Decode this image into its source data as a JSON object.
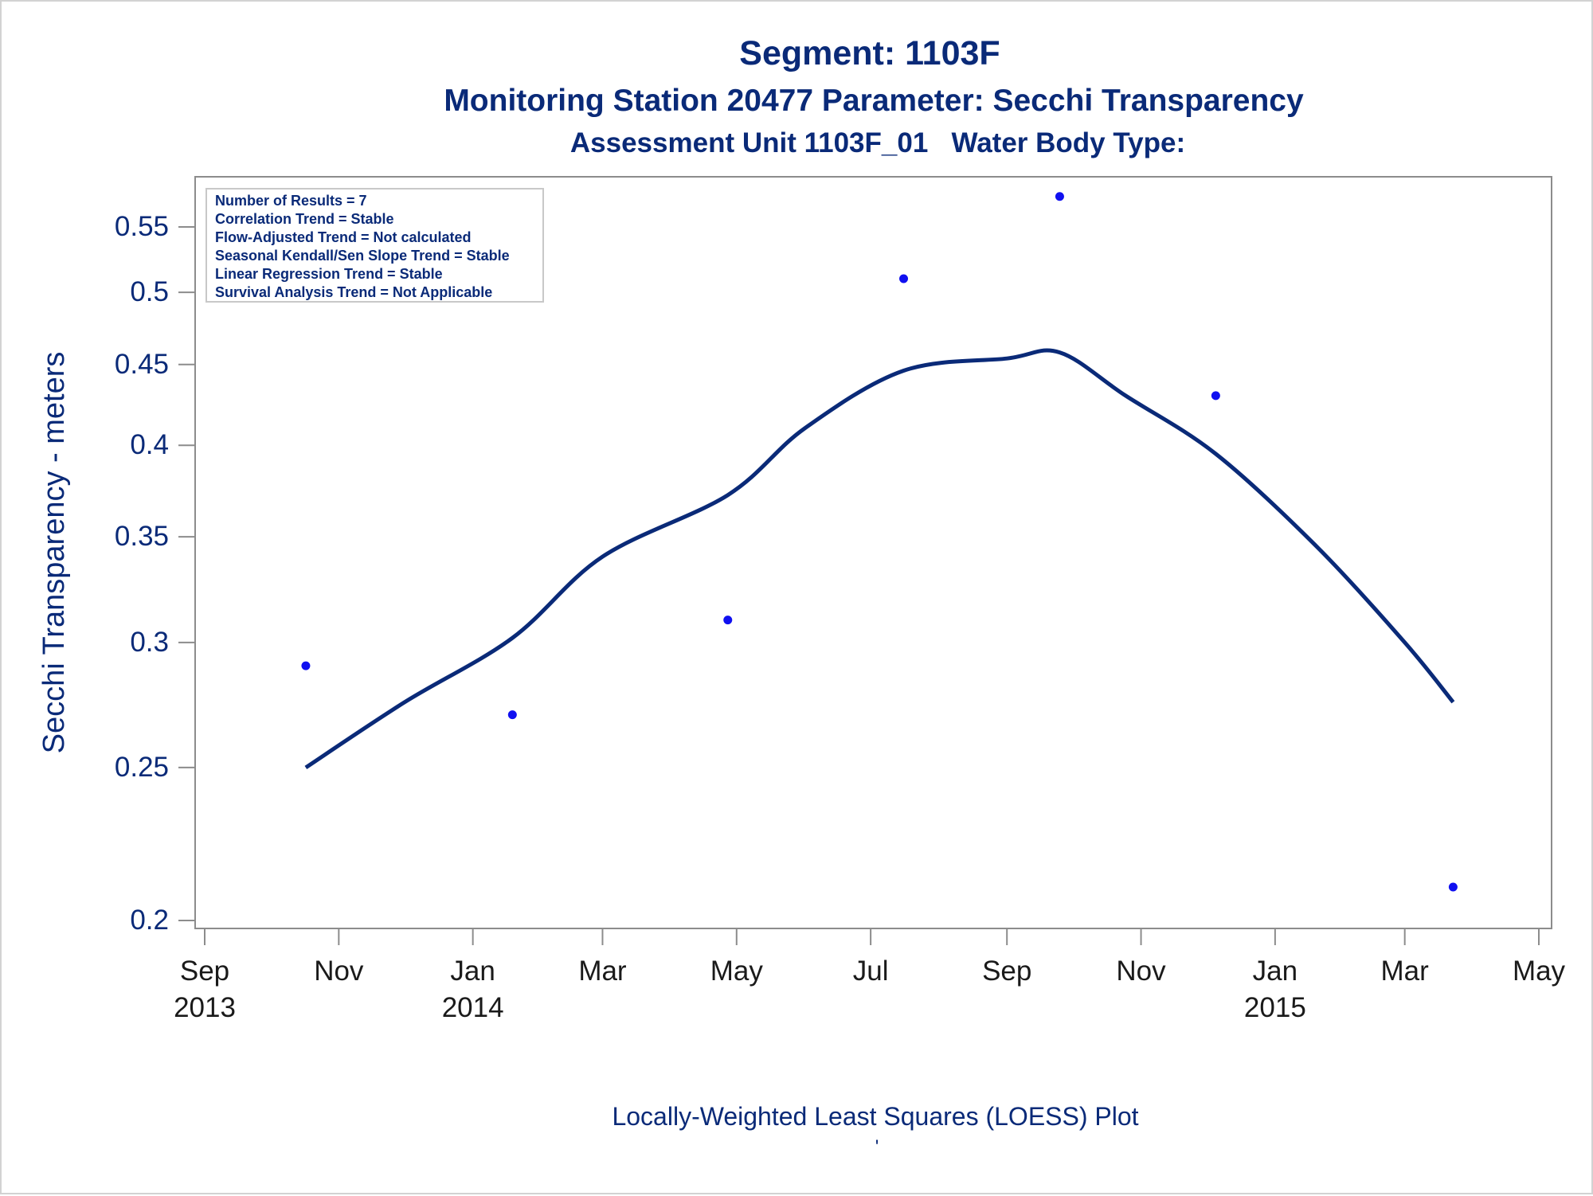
{
  "chart_data": {
    "type": "scatter",
    "title": "Segment: 1103F",
    "subtitle": "Monitoring Station 20477 Parameter: Secchi Transparency",
    "subtitle2": "Assessment Unit 1103F_01   Water Body Type:",
    "xlabel": "",
    "ylabel": "Secchi Transparency - meters",
    "footnote": "Locally-Weighted Least Squares (LOESS) Plot",
    "footnote_mark": "'",
    "y_scale": "log",
    "ylim": [
      0.2,
      0.58
    ],
    "xlim": [
      "2013-09-01",
      "2015-05-01"
    ],
    "grid": false,
    "y_ticks": [
      {
        "value": 0.2,
        "label": "0.2"
      },
      {
        "value": 0.25,
        "label": "0.25"
      },
      {
        "value": 0.3,
        "label": "0.3"
      },
      {
        "value": 0.35,
        "label": "0.35"
      },
      {
        "value": 0.4,
        "label": "0.4"
      },
      {
        "value": 0.45,
        "label": "0.45"
      },
      {
        "value": 0.5,
        "label": "0.5"
      },
      {
        "value": 0.55,
        "label": "0.55"
      }
    ],
    "x_ticks": [
      {
        "date": "2013-09-01",
        "label": "Sep",
        "year": "2013"
      },
      {
        "date": "2013-11-01",
        "label": "Nov",
        "year": ""
      },
      {
        "date": "2014-01-01",
        "label": "Jan",
        "year": "2014"
      },
      {
        "date": "2014-03-01",
        "label": "Mar",
        "year": ""
      },
      {
        "date": "2014-05-01",
        "label": "May",
        "year": ""
      },
      {
        "date": "2014-07-01",
        "label": "Jul",
        "year": ""
      },
      {
        "date": "2014-09-01",
        "label": "Sep",
        "year": ""
      },
      {
        "date": "2014-11-01",
        "label": "Nov",
        "year": ""
      },
      {
        "date": "2015-01-01",
        "label": "Jan",
        "year": "2015"
      },
      {
        "date": "2015-03-01",
        "label": "Mar",
        "year": ""
      },
      {
        "date": "2015-05-01",
        "label": "May",
        "year": ""
      }
    ],
    "points": [
      {
        "x": "2013-10-17",
        "y": 0.29
      },
      {
        "x": "2014-01-19",
        "y": 0.27
      },
      {
        "x": "2014-04-27",
        "y": 0.31
      },
      {
        "x": "2014-07-16",
        "y": 0.51
      },
      {
        "x": "2014-09-25",
        "y": 0.575
      },
      {
        "x": "2014-12-05",
        "y": 0.43
      },
      {
        "x": "2015-03-23",
        "y": 0.21
      }
    ],
    "loess_line": [
      {
        "x": "2013-10-17",
        "y": 0.25
      },
      {
        "x": "2013-12-01",
        "y": 0.275
      },
      {
        "x": "2014-01-19",
        "y": 0.302
      },
      {
        "x": "2014-03-01",
        "y": 0.34
      },
      {
        "x": "2014-04-27",
        "y": 0.372
      },
      {
        "x": "2014-06-01",
        "y": 0.41
      },
      {
        "x": "2014-07-16",
        "y": 0.446
      },
      {
        "x": "2014-09-01",
        "y": 0.454
      },
      {
        "x": "2014-09-25",
        "y": 0.458
      },
      {
        "x": "2014-10-25",
        "y": 0.43
      },
      {
        "x": "2014-12-05",
        "y": 0.395
      },
      {
        "x": "2015-01-20",
        "y": 0.345
      },
      {
        "x": "2015-03-01",
        "y": 0.3
      },
      {
        "x": "2015-03-23",
        "y": 0.275
      }
    ],
    "stats_box": [
      "Number of Results = 7",
      "Correlation Trend = Stable",
      "Flow-Adjusted Trend = Not calculated",
      "Seasonal Kendall/Sen Slope Trend = Stable",
      "Linear Regression Trend = Stable",
      "Survival Analysis Trend = Not Applicable"
    ],
    "colors": {
      "title": "#0a2a78",
      "line": "#0a2a78",
      "points": "#1010f0",
      "axis": "#8c8c8c",
      "tick_label": "#1a1a1a"
    }
  }
}
